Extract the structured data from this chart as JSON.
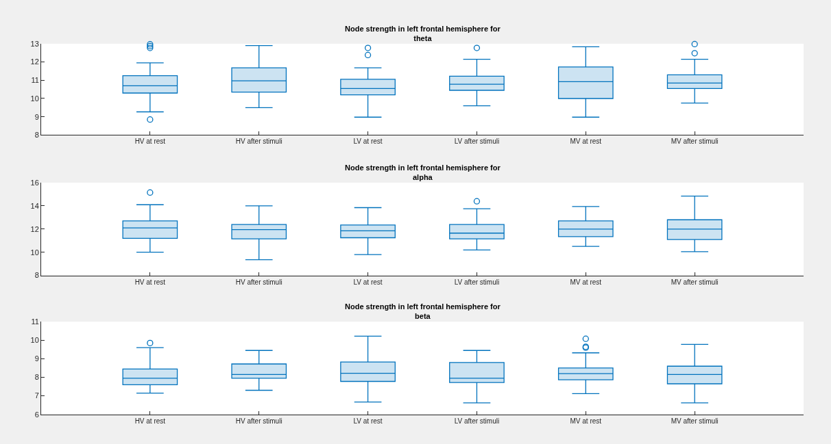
{
  "chart_data": [
    {
      "type": "box",
      "title": "Node strength in left frontal hemisphere for\ntheta",
      "categories": [
        "HV at rest",
        "HV after stimuli",
        "LV at rest",
        "LV after stimuli",
        "MV at rest",
        "MV after stimuli"
      ],
      "color": "#0072bd",
      "ylim": [
        8,
        13
      ],
      "yticks": [
        8,
        9,
        10,
        11,
        12,
        13
      ],
      "legend": false,
      "marker": "circle",
      "boxes": [
        {
          "low": 9.27,
          "q1": 10.3,
          "median": 10.7,
          "q3": 11.25,
          "high": 11.95,
          "outliers": [
            12.97,
            12.87,
            12.77,
            8.85
          ]
        },
        {
          "low": 9.5,
          "q1": 10.35,
          "median": 10.97,
          "q3": 11.68,
          "high": 12.9
        },
        {
          "low": 8.98,
          "q1": 10.2,
          "median": 10.55,
          "q3": 11.05,
          "high": 11.68,
          "outliers": [
            12.77,
            12.38
          ]
        },
        {
          "low": 9.6,
          "q1": 10.45,
          "median": 10.78,
          "q3": 11.22,
          "high": 12.15,
          "outliers": [
            12.77
          ]
        },
        {
          "low": 8.98,
          "q1": 10.0,
          "median": 10.92,
          "q3": 11.73,
          "high": 12.83
        },
        {
          "low": 9.75,
          "q1": 10.55,
          "median": 10.85,
          "q3": 11.3,
          "high": 12.15,
          "outliers": [
            12.98,
            12.48
          ]
        }
      ]
    },
    {
      "type": "box",
      "title": "Node strength in left frontal hemisphere for\nalpha",
      "categories": [
        "HV at rest",
        "HV after stimuli",
        "LV at rest",
        "LV after stimuli",
        "MV at rest",
        "MV after stimuli"
      ],
      "color": "#0072bd",
      "ylim": [
        8,
        16
      ],
      "yticks": [
        8,
        10,
        12,
        14,
        16
      ],
      "legend": false,
      "marker": "circle",
      "boxes": [
        {
          "low": 10.0,
          "q1": 11.2,
          "median": 12.1,
          "q3": 12.7,
          "high": 14.1,
          "outliers": [
            15.15
          ]
        },
        {
          "low": 9.35,
          "q1": 11.15,
          "median": 11.95,
          "q3": 12.4,
          "high": 14.0
        },
        {
          "low": 9.8,
          "q1": 11.25,
          "median": 11.85,
          "q3": 12.35,
          "high": 13.85
        },
        {
          "low": 10.2,
          "q1": 11.15,
          "median": 11.65,
          "q3": 12.4,
          "high": 13.75,
          "outliers": [
            14.4
          ]
        },
        {
          "low": 10.5,
          "q1": 11.35,
          "median": 12.0,
          "q3": 12.7,
          "high": 13.95
        },
        {
          "low": 10.05,
          "q1": 11.1,
          "median": 12.0,
          "q3": 12.8,
          "high": 14.85
        }
      ]
    },
    {
      "type": "box",
      "title": "Node strength in left frontal hemisphere for\nbeta",
      "categories": [
        "HV at rest",
        "HV after stimuli",
        "LV at rest",
        "LV after stimuli",
        "MV at rest",
        "MV after stimuli"
      ],
      "color": "#0072bd",
      "ylim": [
        6,
        11
      ],
      "yticks": [
        6,
        7,
        8,
        9,
        10,
        11
      ],
      "legend": false,
      "marker": "circle",
      "boxes": [
        {
          "low": 7.15,
          "q1": 7.6,
          "median": 7.95,
          "q3": 8.45,
          "high": 9.6,
          "outliers": [
            9.85
          ]
        },
        {
          "low": 7.3,
          "q1": 7.95,
          "median": 8.15,
          "q3": 8.72,
          "high": 9.45
        },
        {
          "low": 6.67,
          "q1": 7.78,
          "median": 8.22,
          "q3": 8.83,
          "high": 10.22
        },
        {
          "low": 6.62,
          "q1": 7.72,
          "median": 7.95,
          "q3": 8.8,
          "high": 9.45
        },
        {
          "low": 7.12,
          "q1": 7.87,
          "median": 8.2,
          "q3": 8.5,
          "high": 9.32,
          "outliers": [
            10.08,
            9.65,
            9.6
          ]
        },
        {
          "low": 6.62,
          "q1": 7.65,
          "median": 8.15,
          "q3": 8.6,
          "high": 9.78
        }
      ]
    }
  ]
}
